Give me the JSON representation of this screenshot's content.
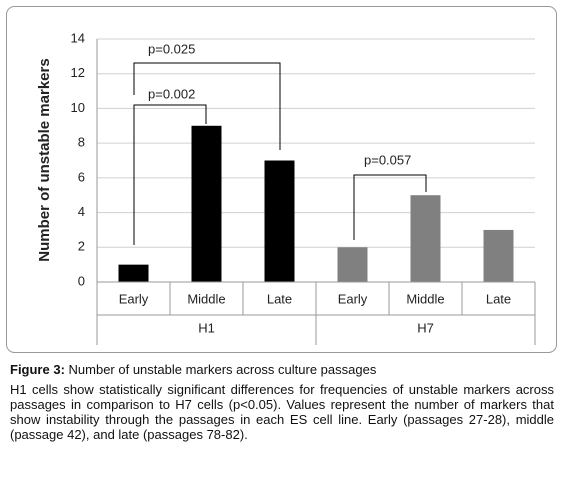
{
  "chart_data": {
    "type": "bar",
    "y_label": "Number of unstable markers",
    "categories": [
      "Early",
      "Middle",
      "Late"
    ],
    "series": [
      {
        "name": "H1",
        "color": "#000000",
        "values": [
          1,
          9,
          7
        ]
      },
      {
        "name": "H7",
        "color": "#808080",
        "values": [
          2,
          5,
          3
        ]
      }
    ],
    "ylim": [
      0,
      14
    ],
    "yticks": [
      0,
      2,
      4,
      6,
      8,
      10,
      12,
      14
    ],
    "grid": true,
    "annotations": [
      "p=0.025",
      "p=0.002",
      "p=0.057"
    ]
  },
  "caption": {
    "label": "Figure 3:",
    "title": " Number of unstable markers across culture passages",
    "text": "H1 cells show statistically significant differences for frequencies of unstable markers across passages in comparison to H7 cells (p<0.05). Values represent the number of markers that show instability through the passages in each ES cell line. Early (passages 27-28), middle (passage 42), and late (passages 78-82)."
  }
}
